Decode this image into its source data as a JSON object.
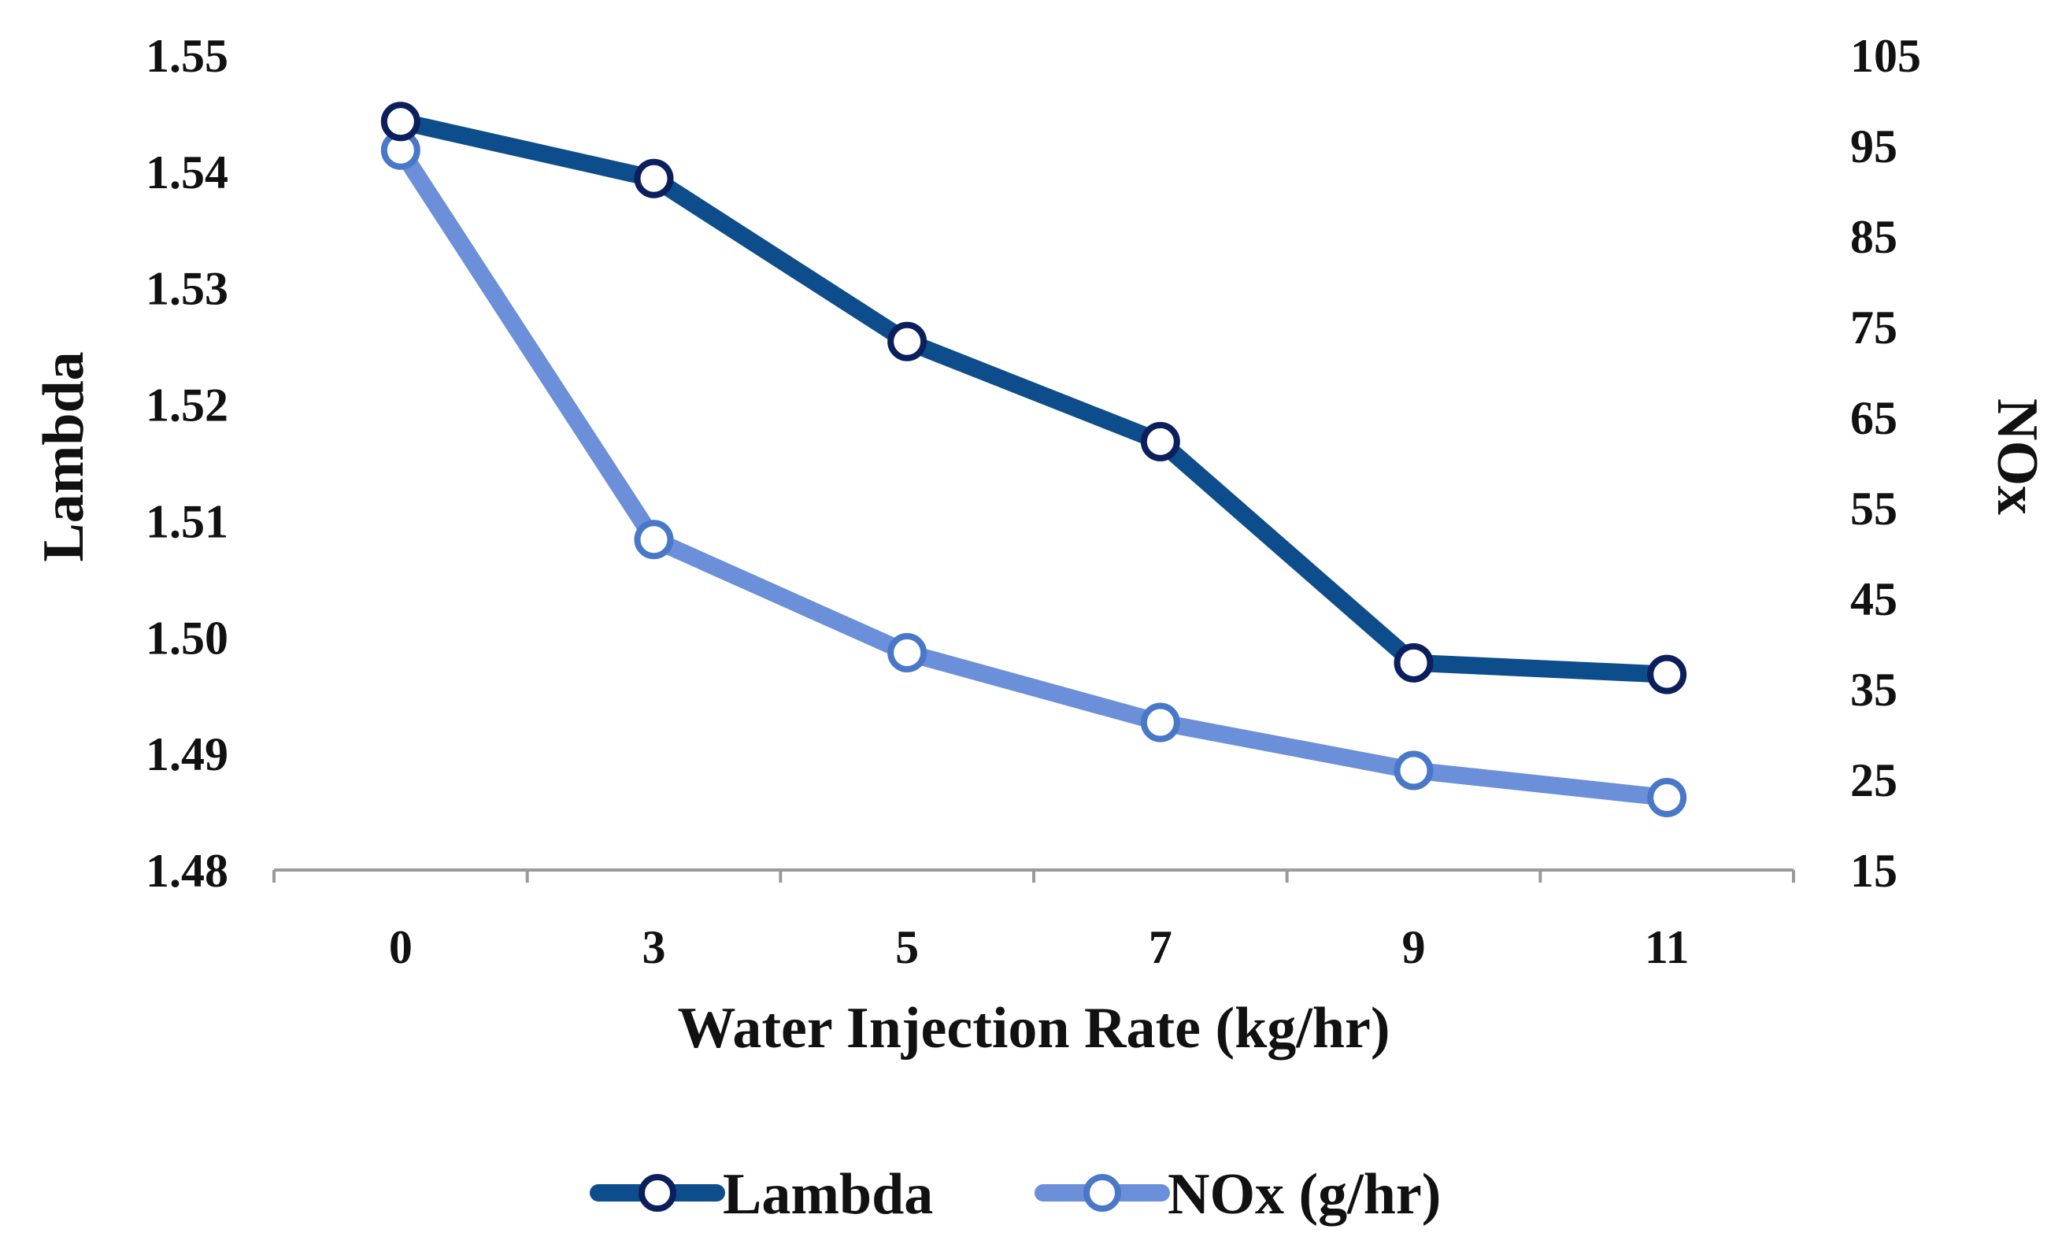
{
  "chart_data": {
    "type": "line",
    "title": "",
    "xlabel": "Water Injection Rate (kg/hr)",
    "ylabel": "Lambda",
    "y2label": "NOx",
    "categories": [
      "0",
      "3",
      "5",
      "7",
      "9",
      "11"
    ],
    "ylim": [
      1.48,
      1.55
    ],
    "yticks": [
      "1.48",
      "1.49",
      "1.50",
      "1.51",
      "1.52",
      "1.53",
      "1.54",
      "1.55"
    ],
    "y2lim": [
      15,
      105
    ],
    "y2ticks": [
      "15",
      "25",
      "35",
      "45",
      "55",
      "65",
      "75",
      "85",
      "95",
      "105"
    ],
    "grid": false,
    "legend_position": "bottom",
    "series": [
      {
        "name": "Lambda",
        "axis": "left",
        "color": "#0E4D8C",
        "marker_edge": "#0A1F5C",
        "values": [
          1.5443,
          1.5394,
          1.5254,
          1.5168,
          1.4978,
          1.4968
        ]
      },
      {
        "name": "NOx (g/hr)",
        "axis": "right",
        "color": "#6B8FD8",
        "marker_edge": "#4A78C8",
        "values": [
          94.5,
          51.5,
          39.0,
          31.3,
          26.0,
          23.0
        ]
      }
    ]
  }
}
